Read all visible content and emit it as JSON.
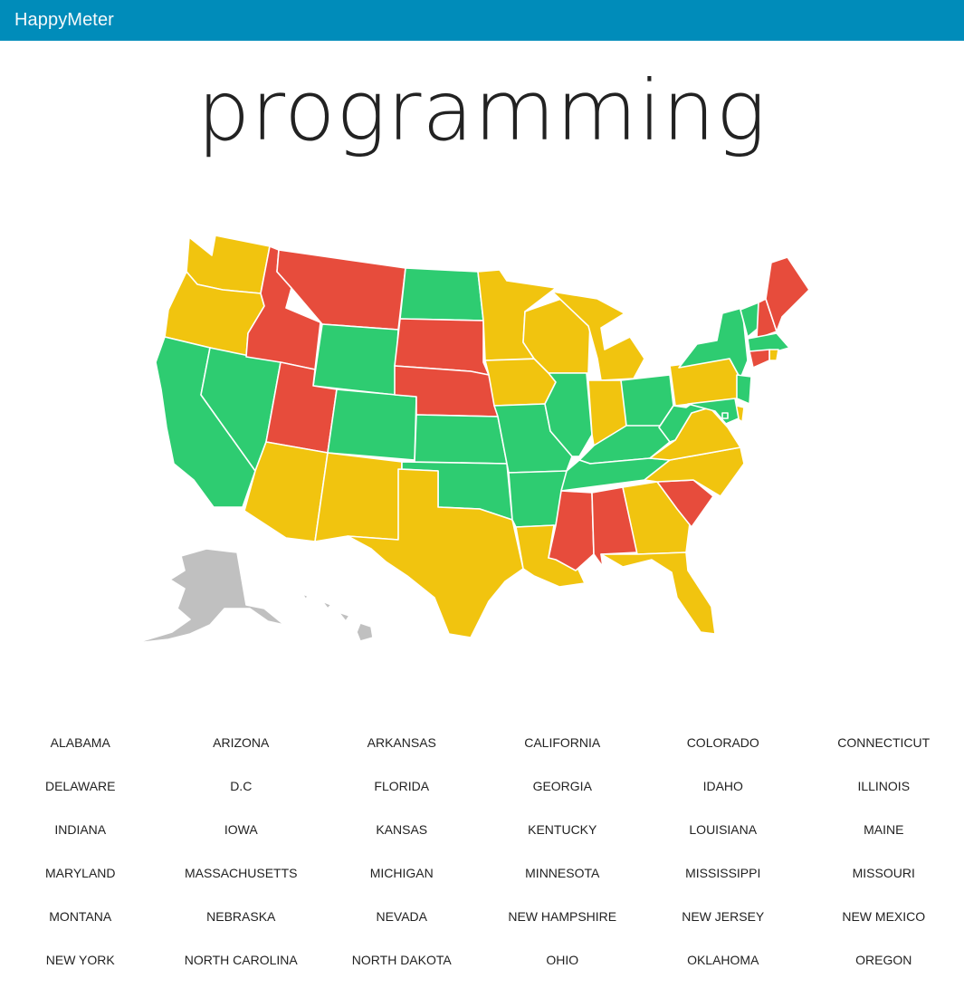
{
  "navbar": {
    "brand": "HappyMeter"
  },
  "page": {
    "title": "programming"
  },
  "legend_colors": {
    "happy": "#2ecc71",
    "neutral": "#f1c40f",
    "unhappy": "#e74c3c",
    "no_data": "#c0c0c0"
  },
  "map": {
    "states": {
      "WA": "neutral",
      "OR": "neutral",
      "CA": "happy",
      "NV": "happy",
      "ID": "unhappy",
      "MT": "unhappy",
      "WY": "happy",
      "UT": "unhappy",
      "AZ": "neutral",
      "CO": "happy",
      "NM": "neutral",
      "ND": "happy",
      "SD": "unhappy",
      "NE": "unhappy",
      "KS": "happy",
      "OK": "happy",
      "TX": "neutral",
      "MN": "neutral",
      "IA": "neutral",
      "MO": "happy",
      "AR": "happy",
      "LA": "neutral",
      "WI": "neutral",
      "IL": "happy",
      "MI": "neutral",
      "IN": "neutral",
      "OH": "happy",
      "KY": "happy",
      "TN": "happy",
      "MS": "unhappy",
      "AL": "unhappy",
      "GA": "neutral",
      "FL": "neutral",
      "SC": "unhappy",
      "NC": "neutral",
      "VA": "neutral",
      "WV": "happy",
      "PA": "neutral",
      "NY": "happy",
      "VT": "happy",
      "NH": "unhappy",
      "ME": "unhappy",
      "MA": "happy",
      "RI": "neutral",
      "CT": "unhappy",
      "NJ": "happy",
      "DE": "neutral",
      "MD": "happy",
      "DC": "happy",
      "AK": "no_data",
      "HI": "no_data"
    }
  },
  "state_links": [
    "ALABAMA",
    "ARIZONA",
    "ARKANSAS",
    "CALIFORNIA",
    "COLORADO",
    "CONNECTICUT",
    "DELAWARE",
    "D.C",
    "FLORIDA",
    "GEORGIA",
    "IDAHO",
    "ILLINOIS",
    "INDIANA",
    "IOWA",
    "KANSAS",
    "KENTUCKY",
    "LOUISIANA",
    "MAINE",
    "MARYLAND",
    "MASSACHUSETTS",
    "MICHIGAN",
    "MINNESOTA",
    "MISSISSIPPI",
    "MISSOURI",
    "MONTANA",
    "NEBRASKA",
    "NEVADA",
    "NEW HAMPSHIRE",
    "NEW JERSEY",
    "NEW MEXICO",
    "NEW YORK",
    "NORTH CAROLINA",
    "NORTH DAKOTA",
    "OHIO",
    "OKLAHOMA",
    "OREGON"
  ]
}
